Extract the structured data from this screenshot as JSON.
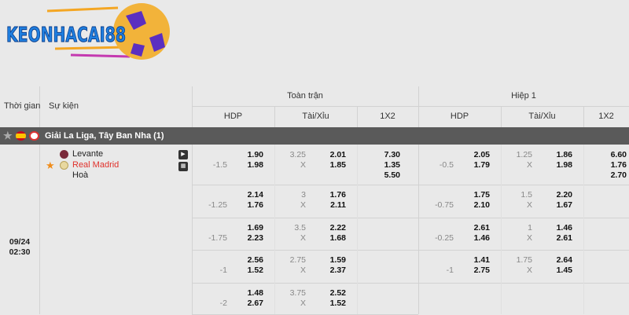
{
  "logo": {
    "text": "KEONHACAI88"
  },
  "header": {
    "time": "Thời gian",
    "event": "Sự kiện",
    "full": "Toàn trận",
    "half": "Hiệp 1",
    "hdp": "HDP",
    "ou": "Tài/Xỉu",
    "x12": "1X2"
  },
  "league": {
    "name": "Giải La Liga, Tây Ban Nha (1)",
    "icons": [
      "star-icon",
      "spain-flag-icon",
      "league-logo-icon"
    ]
  },
  "match": {
    "date": "09/24",
    "time": "02:30",
    "home": "Levante",
    "away": "Real Madrid",
    "draw": "Hoà",
    "away_color": "#e0312b",
    "favorite": true
  },
  "rows": [
    {
      "ft_hdp": "-1.5",
      "ft_h": [
        "1.90",
        "1.98"
      ],
      "ft_ou": "3.25",
      "ft_o": [
        "2.01",
        "1.85"
      ],
      "ft_1x2": [
        "7.30",
        "1.35",
        "5.50"
      ],
      "h1_hdp": "-0.5",
      "h1_h": [
        "2.05",
        "1.79"
      ],
      "h1_ou": "1.25",
      "h1_o": [
        "1.86",
        "1.98"
      ],
      "h1_1x2": [
        "6.60",
        "1.76",
        "2.70"
      ]
    },
    {
      "ft_hdp": "-1.25",
      "ft_h": [
        "2.14",
        "1.76"
      ],
      "ft_ou": "3",
      "ft_o": [
        "1.76",
        "2.11"
      ],
      "h1_hdp": "-0.75",
      "h1_h": [
        "1.75",
        "2.10"
      ],
      "h1_ou": "1.5",
      "h1_o": [
        "2.20",
        "1.67"
      ]
    },
    {
      "ft_hdp": "-1.75",
      "ft_h": [
        "1.69",
        "2.23"
      ],
      "ft_ou": "3.5",
      "ft_o": [
        "2.22",
        "1.68"
      ],
      "h1_hdp": "-0.25",
      "h1_h": [
        "2.61",
        "1.46"
      ],
      "h1_ou": "1",
      "h1_o": [
        "1.46",
        "2.61"
      ]
    },
    {
      "ft_hdp": "-1",
      "ft_h": [
        "2.56",
        "1.52"
      ],
      "ft_ou": "2.75",
      "ft_o": [
        "1.59",
        "2.37"
      ],
      "h1_hdp": "-1",
      "h1_h": [
        "1.41",
        "2.75"
      ],
      "h1_ou": "1.75",
      "h1_o": [
        "2.64",
        "1.45"
      ]
    },
    {
      "ft_hdp": "-2",
      "ft_h": [
        "1.48",
        "2.67"
      ],
      "ft_ou": "3.75",
      "ft_o": [
        "2.52",
        "1.52"
      ]
    }
  ],
  "under_label": "X"
}
